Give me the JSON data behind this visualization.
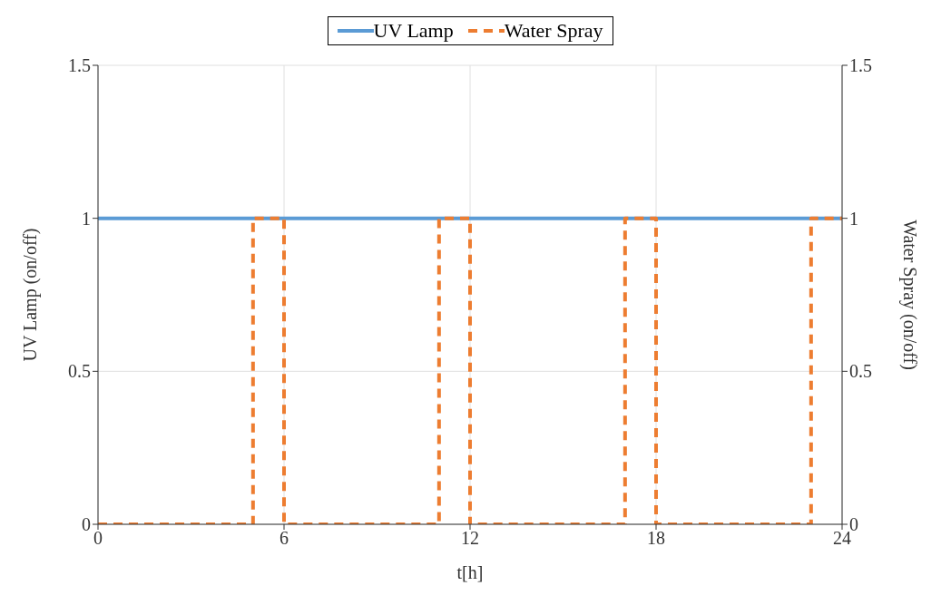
{
  "chart_data": {
    "type": "line",
    "xlabel": "t[h]",
    "ylabel": "UV Lamp (on/off)",
    "y2label": "Water Spray (on/off)",
    "xlim": [
      0,
      24
    ],
    "xticks": [
      0,
      6,
      12,
      18,
      24
    ],
    "ylim": [
      0,
      1.5
    ],
    "yticks": [
      0,
      0.5,
      1,
      1.5
    ],
    "y2lim": [
      0,
      1.5
    ],
    "y2ticks": [
      0,
      0.5,
      1,
      1.5
    ],
    "grid": true,
    "legend": "top",
    "marker": "none",
    "series": [
      {
        "name": "UV Lamp",
        "color": "#5b9bd5",
        "line_style": "solid",
        "x": [
          0,
          24
        ],
        "values": [
          1,
          1
        ]
      },
      {
        "name": "Water Spray",
        "color": "#ed7d31",
        "type": "step",
        "line_style": "dashed",
        "axis": "y2",
        "x": [
          0,
          5,
          6,
          11,
          12,
          17,
          18,
          23,
          24
        ],
        "values": [
          0,
          1,
          0,
          1,
          0,
          1,
          0,
          1,
          1
        ]
      }
    ]
  }
}
